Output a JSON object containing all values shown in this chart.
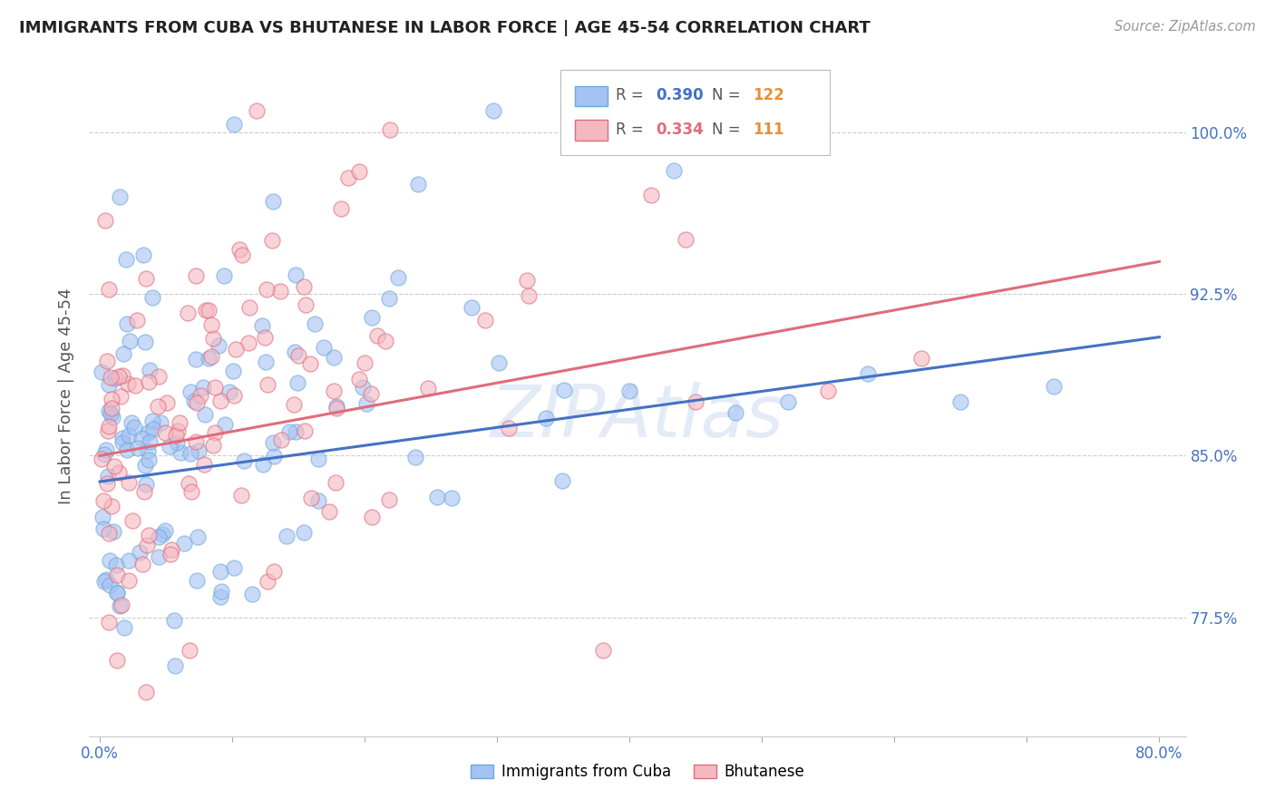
{
  "title": "IMMIGRANTS FROM CUBA VS BHUTANESE IN LABOR FORCE | AGE 45-54 CORRELATION CHART",
  "source_text": "Source: ZipAtlas.com",
  "ylabel": "In Labor Force | Age 45-54",
  "watermark": "ZIPAtlas",
  "xlim": [
    -0.008,
    0.82
  ],
  "ylim": [
    0.72,
    1.035
  ],
  "xtick_pos": [
    0.0,
    0.1,
    0.2,
    0.3,
    0.4,
    0.5,
    0.6,
    0.7,
    0.8
  ],
  "xticklabels": [
    "0.0%",
    "",
    "",
    "",
    "",
    "",
    "",
    "",
    "80.0%"
  ],
  "ytick_positions": [
    0.775,
    0.85,
    0.925,
    1.0
  ],
  "yticklabels": [
    "77.5%",
    "85.0%",
    "92.5%",
    "100.0%"
  ],
  "cuba_color": "#6fa8dc",
  "bhut_color": "#ea9999",
  "cuba_line_color": "#4472c4",
  "bhut_line_color": "#e06c7a",
  "cuba_R": 0.39,
  "cuba_N": 122,
  "bhut_R": 0.334,
  "bhut_N": 111,
  "N_color": "#e69138",
  "grid_color": "#cccccc",
  "background_color": "#ffffff",
  "tick_color": "#4472c4",
  "ylabel_color": "#555555",
  "title_color": "#222222",
  "source_color": "#999999"
}
